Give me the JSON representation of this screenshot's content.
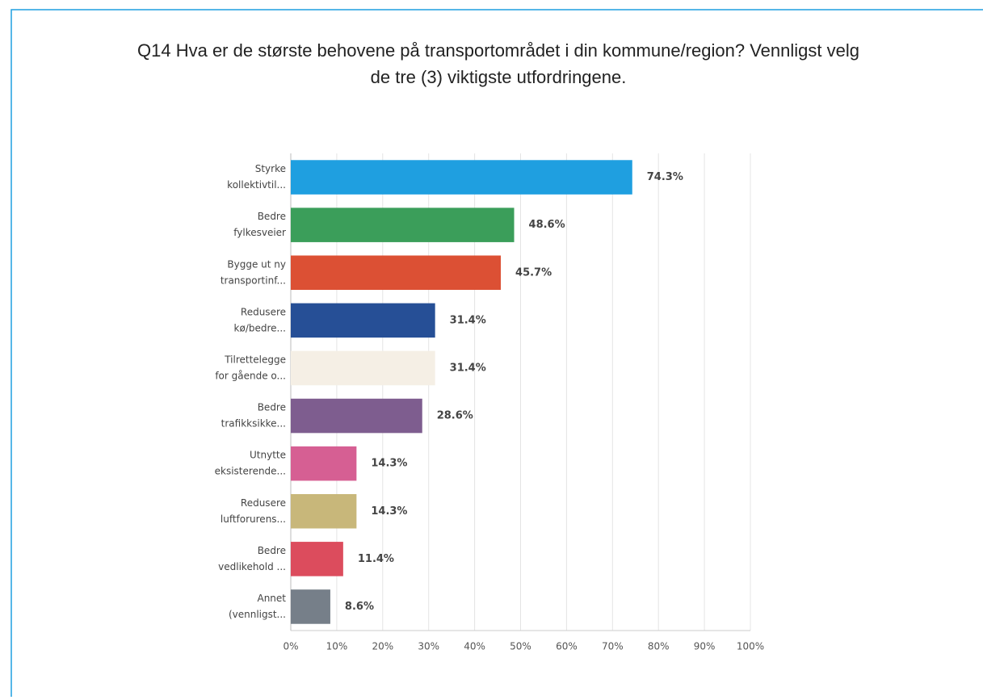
{
  "chart_data": {
    "type": "barh",
    "title": [
      "Q14 Hva er de største behovene på transportområdet i din kommune/region? Vennligst velg",
      "de tre (3) viktigste utfordringene."
    ],
    "categories": [
      [
        "Styrke",
        "kollektivtil..."
      ],
      [
        "Bedre",
        "fylkesveier"
      ],
      [
        "Bygge ut ny",
        "transportinf..."
      ],
      [
        "Redusere",
        "kø/bedre..."
      ],
      [
        "Tilrettelegge",
        "for gående o..."
      ],
      [
        "Bedre",
        "trafikksikke..."
      ],
      [
        "Utnytte",
        "eksisterende..."
      ],
      [
        "Redusere",
        "luftforurens..."
      ],
      [
        "Bedre",
        "vedlikehold ..."
      ],
      [
        "Annet",
        "(vennligst..."
      ]
    ],
    "values": [
      74.3,
      48.6,
      45.7,
      31.4,
      31.4,
      28.6,
      14.3,
      14.3,
      11.4,
      8.6
    ],
    "value_labels": [
      "74.3%",
      "48.6%",
      "45.7%",
      "31.4%",
      "31.4%",
      "28.6%",
      "14.3%",
      "14.3%",
      "11.4%",
      "8.6%"
    ],
    "colors": [
      "#1f9fe0",
      "#3b9e5a",
      "#dc5034",
      "#264f96",
      "#f5efe5",
      "#7e5d8f",
      "#d65f93",
      "#c8b77a",
      "#dc4c5d",
      "#767f89"
    ],
    "xlim": [
      0,
      100
    ],
    "xticks": [
      {
        "value": 0,
        "label": "0%"
      },
      {
        "value": 10,
        "label": "10%"
      },
      {
        "value": 20,
        "label": "20%"
      },
      {
        "value": 30,
        "label": "30%"
      },
      {
        "value": 40,
        "label": "40%"
      },
      {
        "value": 50,
        "label": "50%"
      },
      {
        "value": 60,
        "label": "60%"
      },
      {
        "value": 70,
        "label": "70%"
      },
      {
        "value": 80,
        "label": "80%"
      },
      {
        "value": 90,
        "label": "90%"
      },
      {
        "value": 100,
        "label": "100%"
      }
    ],
    "grid": true
  }
}
